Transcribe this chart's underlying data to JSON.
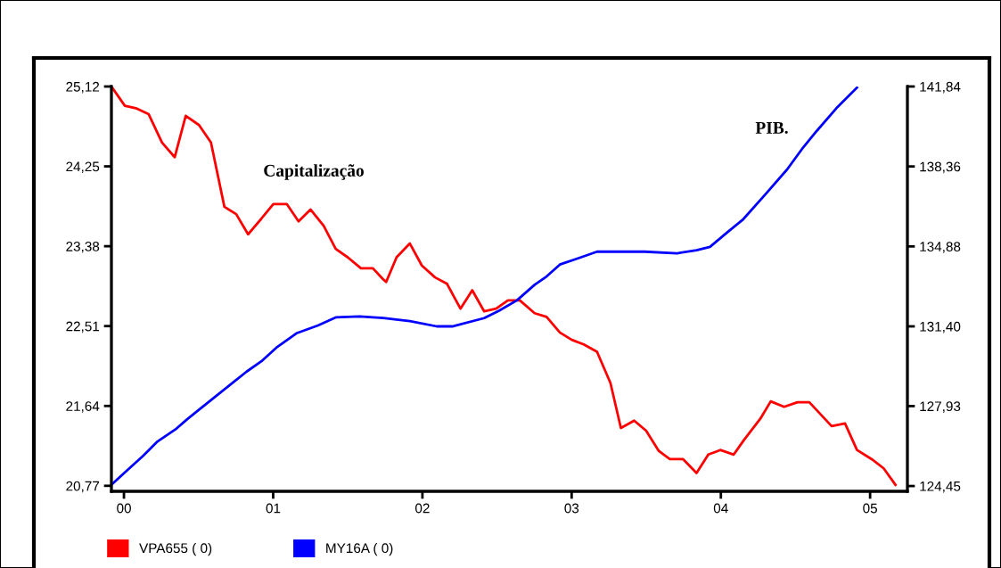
{
  "chart_data": {
    "type": "line",
    "xlim": [
      -0.084,
      5.25
    ],
    "xticks": [
      {
        "value": 0,
        "label": "00"
      },
      {
        "value": 1,
        "label": "01"
      },
      {
        "value": 2,
        "label": "02"
      },
      {
        "value": 3,
        "label": "03"
      },
      {
        "value": 4,
        "label": "04"
      },
      {
        "value": 5,
        "label": "05"
      }
    ],
    "ylim": [
      20.71,
      25.12
    ],
    "yticks": [
      {
        "value": 20.77,
        "label": "20,77"
      },
      {
        "value": 21.64,
        "label": "21,64"
      },
      {
        "value": 22.51,
        "label": "22,51"
      },
      {
        "value": 23.38,
        "label": "23,38"
      },
      {
        "value": 24.25,
        "label": "24,25"
      },
      {
        "value": 25.12,
        "label": "25,12"
      }
    ],
    "y2lim": [
      124.22,
      141.84
    ],
    "y2ticks": [
      {
        "value": 124.45,
        "label": "124,45"
      },
      {
        "value": 127.93,
        "label": "127,93"
      },
      {
        "value": 131.4,
        "label": "131,40"
      },
      {
        "value": 134.88,
        "label": "134,88"
      },
      {
        "value": 138.36,
        "label": "138,36"
      },
      {
        "value": 141.84,
        "label": "141,84"
      }
    ],
    "legend": "bottom",
    "annotations": [
      "Capitalização",
      "PIB."
    ],
    "series": [
      {
        "name": "VPA655 ( 0)",
        "color": "#ff0000",
        "x": [
          -0.084,
          0.006,
          0.086,
          0.165,
          0.255,
          0.34,
          0.414,
          0.503,
          0.583,
          0.673,
          0.752,
          0.832,
          0.921,
          1.001,
          1.091,
          1.17,
          1.25,
          1.339,
          1.419,
          1.499,
          1.588,
          1.668,
          1.737,
          1.757,
          1.827,
          1.916,
          1.996,
          2.085,
          2.165,
          2.255,
          2.334,
          2.414,
          2.494,
          2.573,
          2.653,
          2.752,
          2.832,
          2.921,
          3.001,
          3.081,
          3.17,
          3.26,
          3.33,
          3.419,
          3.499,
          3.584,
          3.658,
          3.747,
          3.837,
          3.916,
          3.996,
          4.086,
          4.155,
          4.264,
          4.334,
          4.424,
          4.513,
          4.593,
          4.742,
          4.832,
          4.912,
          5.011,
          5.091,
          5.17
        ],
        "values": [
          25.12,
          24.91,
          24.88,
          24.82,
          24.51,
          24.35,
          24.8,
          24.7,
          24.51,
          23.81,
          23.73,
          23.51,
          23.68,
          23.84,
          23.84,
          23.65,
          23.78,
          23.6,
          23.35,
          23.26,
          23.14,
          23.14,
          23.02,
          22.99,
          23.26,
          23.41,
          23.17,
          23.04,
          22.97,
          22.7,
          22.9,
          22.67,
          22.7,
          22.79,
          22.79,
          22.65,
          22.61,
          22.44,
          22.36,
          22.31,
          22.23,
          21.89,
          21.4,
          21.48,
          21.37,
          21.15,
          21.06,
          21.06,
          20.91,
          21.11,
          21.16,
          21.11,
          21.27,
          21.5,
          21.69,
          21.63,
          21.68,
          21.68,
          21.42,
          21.45,
          21.16,
          21.06,
          20.96,
          20.78
        ]
      },
      {
        "name": "MY16A ( 0)",
        "color": "#0000ff",
        "axis": "y2",
        "x": [
          -0.084,
          0.026,
          0.125,
          0.225,
          0.344,
          0.424,
          0.524,
          0.623,
          0.722,
          0.822,
          0.921,
          1.021,
          1.16,
          1.3,
          1.419,
          1.578,
          1.737,
          1.916,
          2.096,
          2.205,
          2.414,
          2.513,
          2.633,
          2.752,
          2.832,
          2.921,
          3.051,
          3.17,
          3.489,
          3.707,
          3.837,
          3.927,
          4.046,
          4.145,
          4.304,
          4.444,
          4.553,
          4.643,
          4.782,
          4.912
        ],
        "values": [
          124.51,
          125.16,
          125.74,
          126.39,
          126.91,
          127.36,
          127.88,
          128.4,
          128.91,
          129.43,
          129.88,
          130.47,
          131.11,
          131.44,
          131.79,
          131.83,
          131.76,
          131.63,
          131.4,
          131.4,
          131.76,
          132.08,
          132.53,
          133.21,
          133.57,
          134.09,
          134.38,
          134.65,
          134.65,
          134.58,
          134.71,
          134.86,
          135.51,
          136.03,
          137.19,
          138.23,
          139.2,
          139.91,
          140.95,
          141.79
        ]
      }
    ]
  }
}
